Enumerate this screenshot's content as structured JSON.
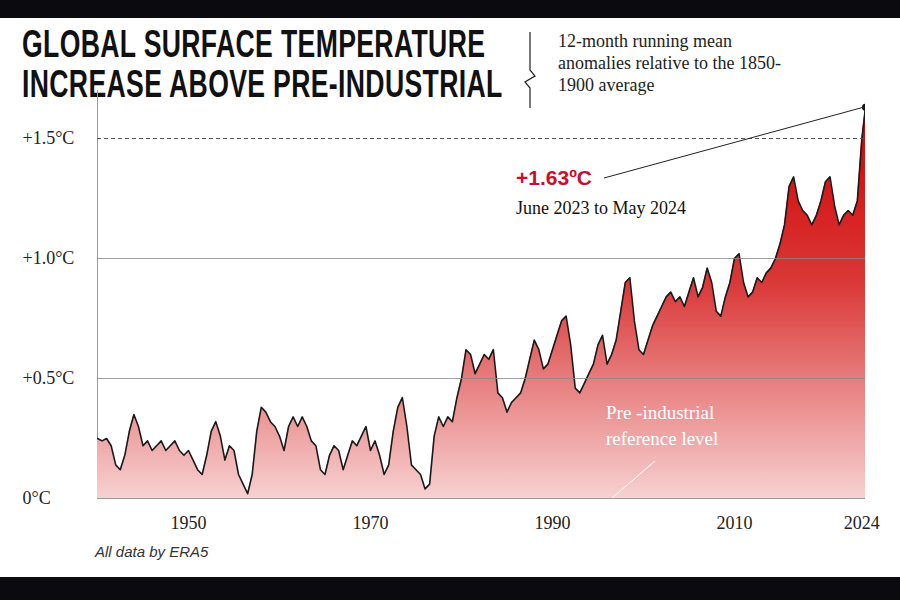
{
  "chart_data": {
    "type": "area",
    "title": "GLOBAL SURFACE TEMPERATURE INCREASE ABOVE PRE-INDUSTRIAL",
    "subtitle": "12-month running mean anomalies relative to the 1850-1900 average",
    "caption": "All data by ERA5",
    "annotations": [
      "+1.63ºC",
      "June 2023 to May 2024",
      "Pre -industrial reference level"
    ],
    "x": [
      1940,
      1940.5,
      1941,
      1941.5,
      1942,
      1942.5,
      1943,
      1943.5,
      1944,
      1944.5,
      1945,
      1945.5,
      1946,
      1946.5,
      1947,
      1947.5,
      1948,
      1948.5,
      1949,
      1949.5,
      1950,
      1950.5,
      1951,
      1951.5,
      1952,
      1952.5,
      1953,
      1953.5,
      1954,
      1954.5,
      1955,
      1955.5,
      1956,
      1956.5,
      1957,
      1957.5,
      1958,
      1958.5,
      1959,
      1959.5,
      1960,
      1960.5,
      1961,
      1961.5,
      1962,
      1962.5,
      1963,
      1963.5,
      1964,
      1964.5,
      1965,
      1965.5,
      1966,
      1966.5,
      1967,
      1967.5,
      1968,
      1968.5,
      1969,
      1969.5,
      1970,
      1970.5,
      1971,
      1971.5,
      1972,
      1972.5,
      1973,
      1973.5,
      1974,
      1974.5,
      1975,
      1975.5,
      1976,
      1976.5,
      1977,
      1977.5,
      1978,
      1978.5,
      1979,
      1979.5,
      1980,
      1980.5,
      1981,
      1981.5,
      1982,
      1982.5,
      1983,
      1983.5,
      1984,
      1984.5,
      1985,
      1985.5,
      1986,
      1986.5,
      1987,
      1987.5,
      1988,
      1988.5,
      1989,
      1989.5,
      1990,
      1990.5,
      1991,
      1991.5,
      1992,
      1992.5,
      1993,
      1993.5,
      1994,
      1994.5,
      1995,
      1995.5,
      1996,
      1996.5,
      1997,
      1997.5,
      1998,
      1998.5,
      1999,
      1999.5,
      2000,
      2000.5,
      2001,
      2001.5,
      2002,
      2002.5,
      2003,
      2003.5,
      2004,
      2004.5,
      2005,
      2005.5,
      2006,
      2006.5,
      2007,
      2007.5,
      2008,
      2008.5,
      2009,
      2009.5,
      2010,
      2010.5,
      2011,
      2011.5,
      2012,
      2012.5,
      2013,
      2013.5,
      2014,
      2014.5,
      2015,
      2015.5,
      2016,
      2016.5,
      2017,
      2017.5,
      2018,
      2018.5,
      2019,
      2019.5,
      2020,
      2020.5,
      2021,
      2021.5,
      2022,
      2022.5,
      2023,
      2023.5,
      2024,
      2024.4
    ],
    "values": [
      0.25,
      0.24,
      0.25,
      0.22,
      0.14,
      0.12,
      0.18,
      0.28,
      0.35,
      0.3,
      0.22,
      0.24,
      0.2,
      0.22,
      0.24,
      0.2,
      0.22,
      0.24,
      0.2,
      0.18,
      0.2,
      0.16,
      0.12,
      0.1,
      0.18,
      0.28,
      0.32,
      0.26,
      0.16,
      0.22,
      0.2,
      0.1,
      0.06,
      0.02,
      0.1,
      0.28,
      0.38,
      0.36,
      0.32,
      0.3,
      0.26,
      0.2,
      0.3,
      0.34,
      0.3,
      0.34,
      0.3,
      0.24,
      0.22,
      0.12,
      0.1,
      0.18,
      0.22,
      0.2,
      0.12,
      0.18,
      0.24,
      0.22,
      0.26,
      0.3,
      0.2,
      0.24,
      0.18,
      0.1,
      0.14,
      0.28,
      0.38,
      0.42,
      0.3,
      0.14,
      0.12,
      0.1,
      0.04,
      0.06,
      0.26,
      0.34,
      0.3,
      0.34,
      0.32,
      0.42,
      0.5,
      0.62,
      0.6,
      0.52,
      0.56,
      0.6,
      0.58,
      0.62,
      0.44,
      0.42,
      0.36,
      0.4,
      0.42,
      0.44,
      0.5,
      0.58,
      0.66,
      0.62,
      0.54,
      0.56,
      0.62,
      0.68,
      0.74,
      0.76,
      0.64,
      0.46,
      0.44,
      0.48,
      0.52,
      0.56,
      0.64,
      0.68,
      0.56,
      0.6,
      0.66,
      0.78,
      0.9,
      0.92,
      0.74,
      0.62,
      0.6,
      0.66,
      0.72,
      0.76,
      0.8,
      0.84,
      0.86,
      0.82,
      0.84,
      0.8,
      0.86,
      0.92,
      0.84,
      0.88,
      0.96,
      0.9,
      0.78,
      0.76,
      0.84,
      0.9,
      1.0,
      1.02,
      0.9,
      0.84,
      0.86,
      0.92,
      0.9,
      0.94,
      0.96,
      1.0,
      1.06,
      1.14,
      1.3,
      1.34,
      1.24,
      1.2,
      1.18,
      1.14,
      1.18,
      1.24,
      1.32,
      1.34,
      1.22,
      1.14,
      1.18,
      1.2,
      1.18,
      1.24,
      1.5,
      1.63
    ],
    "color": "#d00000",
    "xlim": [
      1940,
      2024.4
    ],
    "xticks": [
      1950,
      1970,
      1990,
      2010,
      2024
    ],
    "ylim": [
      0,
      1.7
    ],
    "yticks": [
      {
        "value": 0,
        "label": "0°C"
      },
      {
        "value": 0.5,
        "label": "+0.5°C"
      },
      {
        "value": 1.0,
        "label": "+1.0°C"
      },
      {
        "value": 1.5,
        "label": "+1.5°C"
      }
    ],
    "grid": true
  }
}
